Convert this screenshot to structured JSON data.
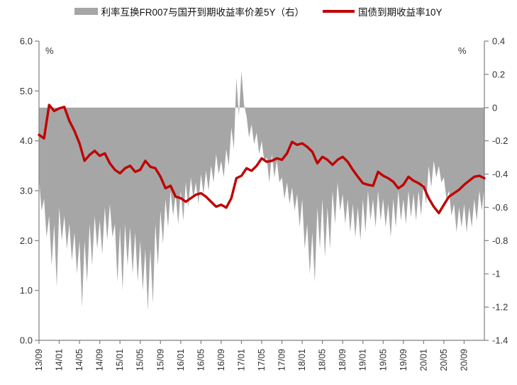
{
  "colors": {
    "background": "#FFFFFF",
    "axis": "#808080",
    "text": "#333333",
    "area_gray": "#A6A6A6",
    "line_red": "#C00000"
  },
  "legend": {
    "items": [
      {
        "label": "利率互换FR007与国开到期收益率价差5Y（右）",
        "swatch": "area",
        "color": "#A6A6A6"
      },
      {
        "label": "国债到期收益率10Y",
        "swatch": "line",
        "color": "#C00000"
      }
    ]
  },
  "chart_data": {
    "type": "combo",
    "subtype": [
      "area",
      "line"
    ],
    "grid": false,
    "x": {
      "unit": "month",
      "start": "2013-09",
      "end": "2021-01",
      "points_are_monthly": true,
      "tick_every_months": 4,
      "tick_labels": [
        "13/09",
        "14/01",
        "14/05",
        "14/09",
        "15/01",
        "15/05",
        "15/09",
        "16/01",
        "16/05",
        "16/09",
        "17/01",
        "17/05",
        "17/09",
        "18/01",
        "18/05",
        "18/09",
        "19/01",
        "19/05",
        "19/09",
        "20/01",
        "20/05",
        "20/09"
      ]
    },
    "left_axis": {
      "unit": "%",
      "min": 0,
      "max": 6,
      "tick_labels": [
        "6.0",
        "5.0",
        "4.0",
        "3.0",
        "2.0",
        "1.0",
        "0.0"
      ]
    },
    "right_axis": {
      "unit": "%",
      "min": -1.4,
      "max": 0.4,
      "tick_labels": [
        "0.4",
        "0.2",
        "0",
        "-0.2",
        "-0.4",
        "-0.6",
        "-0.8",
        "-1",
        "-1.2",
        "-1.4"
      ]
    },
    "series": [
      {
        "name": "利率互换FR007与国开到期收益率价差5Y（右）",
        "type": "area",
        "axis": "right",
        "color": "#A6A6A6",
        "baseline": 0,
        "sampling": "monthly envelope (typical level and intra-month spike extreme), Sep-2013 to Jan-2021",
        "values_typical": [
          -0.42,
          -0.55,
          -0.65,
          -0.7,
          -0.6,
          -0.65,
          -0.7,
          -0.75,
          -0.8,
          -0.8,
          -0.7,
          -0.65,
          -0.68,
          -0.6,
          -0.58,
          -0.7,
          -0.72,
          -0.7,
          -0.72,
          -0.75,
          -0.8,
          -0.85,
          -0.85,
          -0.7,
          -0.62,
          -0.55,
          -0.5,
          -0.52,
          -0.5,
          -0.45,
          -0.42,
          -0.45,
          -0.4,
          -0.38,
          -0.35,
          -0.28,
          -0.32,
          -0.25,
          -0.12,
          0.18,
          0.22,
          -0.05,
          -0.1,
          -0.15,
          -0.2,
          -0.3,
          -0.28,
          -0.32,
          -0.42,
          -0.45,
          -0.48,
          -0.52,
          -0.55,
          -0.7,
          -0.75,
          -0.6,
          -0.55,
          -0.6,
          -0.5,
          -0.45,
          -0.52,
          -0.55,
          -0.58,
          -0.6,
          -0.55,
          -0.5,
          -0.55,
          -0.5,
          -0.55,
          -0.58,
          -0.55,
          -0.5,
          -0.55,
          -0.5,
          -0.52,
          -0.5,
          -0.45,
          -0.35,
          -0.32,
          -0.35,
          -0.42,
          -0.5,
          -0.58,
          -0.6,
          -0.58,
          -0.6,
          -0.55,
          -0.5,
          -0.48
        ],
        "values_spike": [
          -0.62,
          -0.78,
          -0.95,
          -1.08,
          -0.8,
          -0.85,
          -0.92,
          -1.0,
          -1.2,
          -1.05,
          -0.95,
          -0.85,
          -0.88,
          -0.8,
          -0.78,
          -1.05,
          -1.1,
          -0.95,
          -1.0,
          -1.05,
          -1.1,
          -1.22,
          -1.18,
          -0.95,
          -0.82,
          -0.72,
          -0.65,
          -0.7,
          -0.68,
          -0.6,
          -0.55,
          -0.58,
          -0.52,
          -0.5,
          -0.45,
          -0.4,
          -0.42,
          -0.35,
          -0.25,
          -0.05,
          0.02,
          -0.18,
          -0.22,
          -0.28,
          -0.32,
          -0.45,
          -0.42,
          -0.45,
          -0.55,
          -0.58,
          -0.62,
          -0.72,
          -0.85,
          -1.0,
          -1.05,
          -0.85,
          -0.9,
          -0.85,
          -0.7,
          -0.62,
          -0.7,
          -0.75,
          -0.78,
          -0.8,
          -0.75,
          -0.68,
          -0.72,
          -0.68,
          -0.72,
          -0.78,
          -0.72,
          -0.68,
          -0.7,
          -0.66,
          -0.68,
          -0.65,
          -0.58,
          -0.48,
          -0.42,
          -0.45,
          -0.55,
          -0.65,
          -0.75,
          -0.72,
          -0.75,
          -0.72,
          -0.68,
          -0.62,
          -0.58
        ]
      },
      {
        "name": "国债到期收益率10Y",
        "type": "line",
        "axis": "left",
        "color": "#C00000",
        "stroke_width": 3.4,
        "sampling": "monthly, Sep-2013 to Jan-2021",
        "values": [
          4.12,
          4.05,
          4.72,
          4.6,
          4.65,
          4.68,
          4.4,
          4.2,
          3.95,
          3.6,
          3.72,
          3.8,
          3.7,
          3.75,
          3.55,
          3.42,
          3.35,
          3.45,
          3.5,
          3.38,
          3.42,
          3.6,
          3.48,
          3.45,
          3.28,
          3.05,
          3.1,
          2.88,
          2.85,
          2.78,
          2.85,
          2.92,
          2.95,
          2.88,
          2.78,
          2.68,
          2.72,
          2.66,
          2.85,
          3.25,
          3.3,
          3.45,
          3.4,
          3.5,
          3.65,
          3.58,
          3.6,
          3.65,
          3.62,
          3.75,
          3.98,
          3.92,
          3.95,
          3.88,
          3.78,
          3.55,
          3.68,
          3.62,
          3.52,
          3.62,
          3.68,
          3.58,
          3.42,
          3.28,
          3.15,
          3.12,
          3.1,
          3.38,
          3.3,
          3.25,
          3.18,
          3.05,
          3.12,
          3.28,
          3.2,
          3.15,
          3.08,
          2.85,
          2.68,
          2.55,
          2.72,
          2.88,
          2.95,
          3.02,
          3.12,
          3.2,
          3.28,
          3.3,
          3.25
        ]
      }
    ]
  }
}
